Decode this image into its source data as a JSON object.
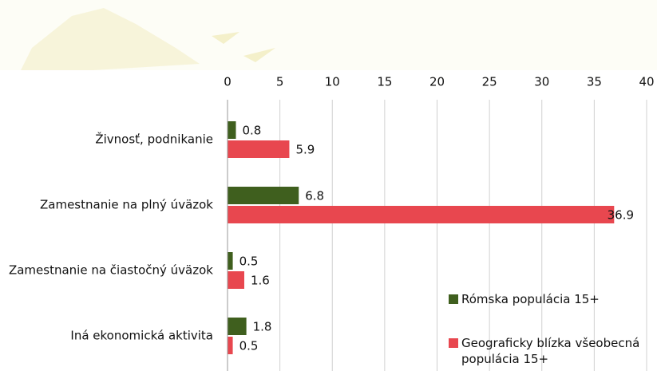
{
  "chart_data": {
    "type": "barh",
    "categories": [
      "Živnosť, podnikanie",
      "Zamestnanie na plný úväzok",
      "Zamestnanie na čiastočný úväzok",
      "Iná ekonomická aktivita"
    ],
    "series": [
      {
        "name": "Rómska populácia 15+",
        "color": "#3f5f1e",
        "values": [
          0.8,
          6.8,
          0.5,
          1.8
        ]
      },
      {
        "name": "Geograficky blízka všeobecná populácia 15+",
        "color": "#e8474f",
        "values": [
          5.9,
          36.9,
          1.6,
          0.5
        ]
      }
    ],
    "xlim": [
      0,
      40
    ],
    "xticks": [
      0,
      5,
      10,
      15,
      20,
      25,
      30,
      35,
      40
    ],
    "grid": true
  }
}
